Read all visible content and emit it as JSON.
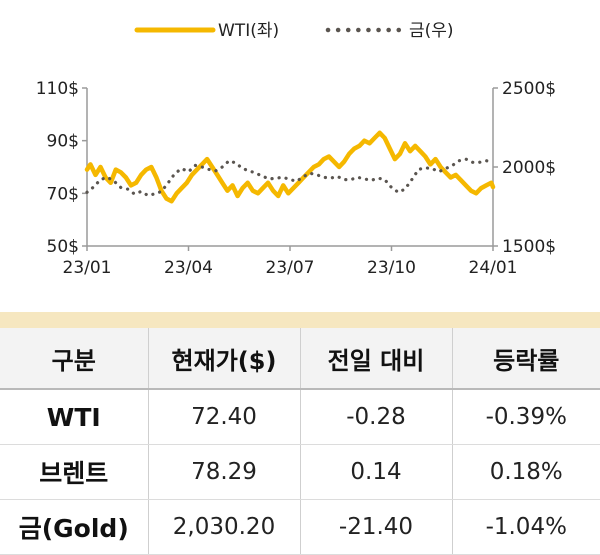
{
  "chart_data": {
    "type": "line",
    "legend": [
      {
        "name": "WTI(좌)",
        "color": "#f5b800",
        "style": "solid"
      },
      {
        "name": "금(우)",
        "color": "#5a5550",
        "style": "dotted"
      }
    ],
    "legend_position": "top-center",
    "x_tick_labels": [
      "23/01",
      "23/04",
      "23/07",
      "23/10",
      "24/01"
    ],
    "left_axis": {
      "ticks": [
        "110$",
        "90$",
        "70$",
        "50$"
      ],
      "range": [
        50,
        110
      ]
    },
    "right_axis": {
      "ticks": [
        "2500$",
        "2000$",
        "1500$"
      ],
      "range": [
        1500,
        2500
      ]
    },
    "grid": false,
    "series": [
      {
        "name": "WTI(좌)",
        "axis": "left",
        "x_month_index": [
          0,
          0.1,
          0.25,
          0.4,
          0.55,
          0.7,
          0.85,
          1.0,
          1.15,
          1.3,
          1.45,
          1.6,
          1.75,
          1.9,
          2.05,
          2.2,
          2.35,
          2.5,
          2.65,
          2.8,
          2.95,
          3.1,
          3.25,
          3.4,
          3.55,
          3.7,
          3.85,
          4.0,
          4.15,
          4.3,
          4.45,
          4.6,
          4.75,
          4.9,
          5.05,
          5.2,
          5.35,
          5.5,
          5.65,
          5.8,
          5.95,
          6.1,
          6.25,
          6.4,
          6.55,
          6.7,
          6.85,
          7.0,
          7.15,
          7.3,
          7.45,
          7.6,
          7.75,
          7.9,
          8.05,
          8.2,
          8.35,
          8.5,
          8.65,
          8.8,
          8.95,
          9.1,
          9.25,
          9.4,
          9.55,
          9.7,
          9.85,
          10.0,
          10.15,
          10.3,
          10.45,
          10.6,
          10.75,
          10.9,
          11.05,
          11.2,
          11.35,
          11.5,
          11.65,
          11.8,
          11.95,
          12.0
        ],
        "values": [
          79,
          81,
          77,
          80,
          76,
          74,
          79,
          78,
          76,
          73,
          74,
          77,
          79,
          80,
          76,
          71,
          68,
          67,
          70,
          72,
          74,
          77,
          79,
          81,
          83,
          80,
          77,
          74,
          71,
          73,
          69,
          72,
          74,
          71,
          70,
          72,
          74,
          71,
          69,
          73,
          70,
          72,
          74,
          76,
          78,
          80,
          81,
          83,
          84,
          82,
          80,
          82,
          85,
          87,
          88,
          90,
          89,
          91,
          93,
          91,
          87,
          83,
          85,
          89,
          86,
          88,
          86,
          84,
          81,
          83,
          80,
          78,
          76,
          77,
          75,
          73,
          71,
          70,
          72,
          73,
          74,
          72.4
        ]
      },
      {
        "name": "금(우)",
        "axis": "right",
        "x_month_index": [
          0,
          0.2,
          0.4,
          0.6,
          0.8,
          1.0,
          1.2,
          1.4,
          1.6,
          1.8,
          2.0,
          2.2,
          2.4,
          2.6,
          2.8,
          3.0,
          3.2,
          3.4,
          3.6,
          3.8,
          4.0,
          4.2,
          4.4,
          4.6,
          4.8,
          5.0,
          5.2,
          5.4,
          5.6,
          5.8,
          6.0,
          6.2,
          6.4,
          6.6,
          6.8,
          7.0,
          7.2,
          7.4,
          7.6,
          7.8,
          8.0,
          8.2,
          8.4,
          8.6,
          8.8,
          9.0,
          9.2,
          9.4,
          9.6,
          9.8,
          10.0,
          10.2,
          10.4,
          10.6,
          10.8,
          11.0,
          11.2,
          11.4,
          11.6,
          11.8,
          12.0
        ],
        "values": [
          1840,
          1875,
          1920,
          1935,
          1910,
          1870,
          1860,
          1830,
          1845,
          1820,
          1830,
          1845,
          1900,
          1960,
          1990,
          1970,
          2010,
          2000,
          1985,
          1975,
          2000,
          2040,
          2025,
          1990,
          1975,
          1960,
          1940,
          1925,
          1930,
          1935,
          1920,
          1910,
          1940,
          1960,
          1950,
          1935,
          1930,
          1940,
          1920,
          1920,
          1935,
          1925,
          1915,
          1930,
          1920,
          1870,
          1840,
          1860,
          1920,
          1985,
          1995,
          1990,
          1970,
          1990,
          2010,
          2040,
          2050,
          2030,
          2030,
          2040,
          2030
        ]
      }
    ]
  },
  "table": {
    "headers": [
      "구분",
      "현재가($)",
      "전일 대비",
      "등락률"
    ],
    "rows": [
      {
        "name": "WTI",
        "price": "72.40",
        "change": "-0.28",
        "rate": "-0.39%"
      },
      {
        "name": "브렌트",
        "price": "78.29",
        "change": "0.14",
        "rate": "0.18%"
      },
      {
        "name": "금(Gold)",
        "price": "2,030.20",
        "change": "-21.40",
        "rate": "-1.04%"
      }
    ]
  }
}
